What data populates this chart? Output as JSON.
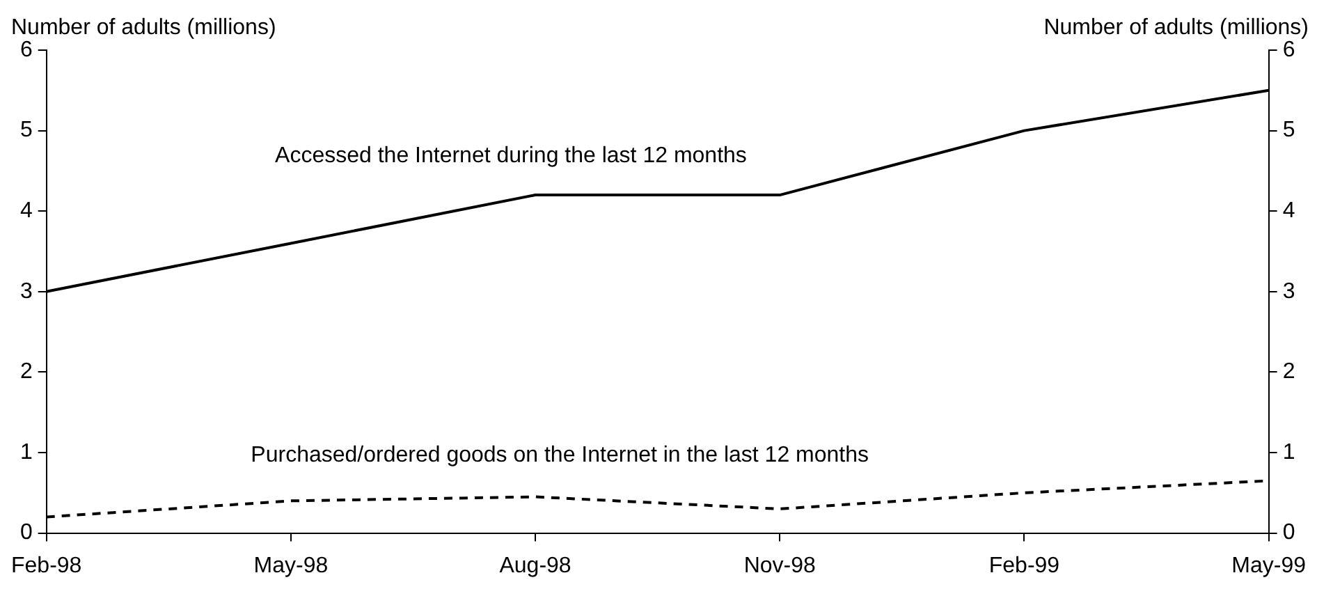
{
  "chart_data": {
    "type": "line",
    "categories": [
      "Feb-98",
      "May-98",
      "Aug-98",
      "Nov-98",
      "Feb-99",
      "May-99"
    ],
    "series": [
      {
        "name": "Accessed the Internet during the last 12 months",
        "color": "#000000",
        "line_style": "solid",
        "values": [
          3.0,
          3.6,
          4.2,
          4.2,
          5.0,
          5.5
        ]
      },
      {
        "name": "Purchased/ordered goods on the Internet in the last 12 months",
        "color": "#000000",
        "line_style": "dashed",
        "values": [
          0.2,
          0.4,
          0.45,
          0.3,
          0.5,
          0.65
        ]
      }
    ],
    "ylabel": "Number of adults (millions)",
    "y2label": "Number of adults (millions)",
    "ylim": [
      0,
      6
    ],
    "yticks": [
      0,
      1,
      2,
      3,
      4,
      5,
      6
    ],
    "y2lim": [
      0,
      6
    ],
    "y2ticks": [
      0,
      1,
      2,
      3,
      4,
      5,
      6
    ],
    "grid": false,
    "legend": false,
    "marker": "none"
  }
}
